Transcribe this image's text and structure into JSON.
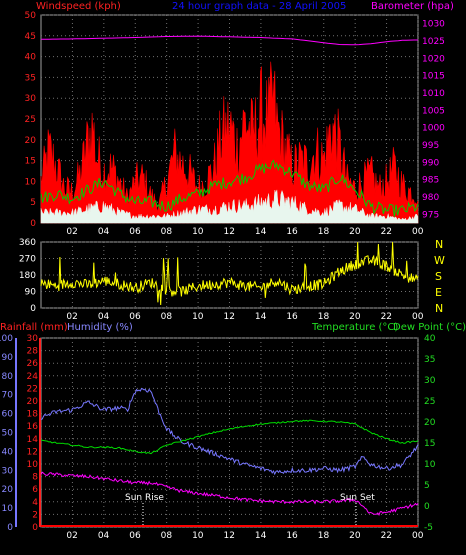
{
  "header": {
    "windspeed_label": "Windspeed (kph)",
    "title": "24 hour graph data - 28 April 2005",
    "barometer_label": "Barometer (hpa)"
  },
  "bottom_header": {
    "rainfall_label": "Rainfall (mm)",
    "humidity_label": "Humidity (%)",
    "temperature_label": "Temperature (°C)",
    "dewpoint_label": "Dew Point (°C)"
  },
  "annotations": {
    "sunrise": "Sun Rise",
    "sunset": "Sun Set"
  },
  "compass": [
    "N",
    "W",
    "S",
    "E",
    "N"
  ],
  "colors": {
    "wind_gust": "#ff0000",
    "wind_avg": "#00cc00",
    "wind_low": "#e8f6ee",
    "barometer": "#ff00ff",
    "direction": "#ffff00",
    "humidity": "#7777ff",
    "temperature": "#00dd00",
    "dewpoint": "#ff00ff",
    "rainfall": "#ff0000",
    "title": "#1111ff",
    "grid": "#707070"
  },
  "chart_data": [
    {
      "type": "area",
      "name": "wind-barometer",
      "x_ticks": [
        "02",
        "04",
        "06",
        "08",
        "10",
        "12",
        "14",
        "16",
        "18",
        "20",
        "22",
        "00"
      ],
      "y_left_ticks": [
        "0",
        "5",
        "10",
        "15",
        "20",
        "25",
        "30",
        "35",
        "40",
        "45",
        "50"
      ],
      "y_left_range": [
        0,
        50
      ],
      "y_right_ticks": [
        "975",
        "980",
        "985",
        "990",
        "995",
        "1000",
        "1005",
        "1010",
        "1015",
        "1020",
        "1025",
        "1030"
      ],
      "y_right_range": [
        972.5,
        1032.5
      ],
      "x_range": [
        0,
        24
      ],
      "series": [
        {
          "name": "Wind gust",
          "kind": "area",
          "color": "#ff0000",
          "x": [
            0,
            0.5,
            1,
            1.5,
            2,
            2.5,
            3,
            3.3,
            3.5,
            4,
            4.5,
            5,
            5.5,
            6,
            6.5,
            7,
            7.5,
            8,
            8.5,
            9,
            9.5,
            10,
            10.5,
            11,
            11.5,
            12,
            12.5,
            13,
            13.5,
            14,
            14.5,
            14.8,
            15,
            15.5,
            16,
            16.5,
            17,
            17.5,
            18,
            18.5,
            19,
            19.5,
            20,
            20.5,
            21,
            21.5,
            22,
            22.5,
            23,
            23.5,
            24
          ],
          "y": [
            12,
            21,
            16,
            10,
            9,
            14,
            24,
            28,
            20,
            15,
            16,
            12,
            7,
            12,
            13,
            8,
            5,
            12,
            20,
            17,
            14,
            10,
            12,
            16,
            25,
            28,
            22,
            30,
            25,
            32,
            30,
            36,
            28,
            22,
            16,
            18,
            17,
            21,
            18,
            28,
            22,
            12,
            10,
            12,
            14,
            10,
            12,
            16,
            11,
            9,
            8
          ]
        },
        {
          "name": "Wind average",
          "kind": "line",
          "color": "#00cc00",
          "x": [
            0,
            1,
            2,
            3,
            4,
            5,
            6,
            7,
            8,
            9,
            10,
            11,
            12,
            13,
            14,
            15,
            16,
            17,
            18,
            19,
            20,
            21,
            22,
            23,
            24
          ],
          "y": [
            6,
            7,
            6,
            8,
            10,
            7,
            5,
            5,
            4,
            6,
            7,
            9,
            10,
            11,
            13,
            14,
            12,
            9,
            8,
            11,
            8,
            4,
            3,
            3,
            4
          ]
        },
        {
          "name": "Wind low",
          "kind": "area",
          "color": "#e8f6ee",
          "x": [
            0,
            1,
            2,
            3,
            4,
            5,
            6,
            7,
            8,
            9,
            10,
            11,
            12,
            13,
            14,
            15,
            16,
            17,
            18,
            19,
            20,
            21,
            22,
            23,
            24
          ],
          "y": [
            3,
            3,
            3,
            4,
            5,
            3,
            2,
            2,
            2,
            3,
            4,
            4,
            5,
            5,
            6,
            7,
            6,
            4,
            3,
            5,
            4,
            2,
            2,
            1,
            2
          ]
        },
        {
          "name": "Barometer",
          "kind": "line",
          "axis": "right",
          "color": "#ff00ff",
          "x": [
            0,
            2,
            4,
            6,
            8,
            10,
            12,
            14,
            16,
            18,
            19,
            20,
            21,
            22,
            23,
            24
          ],
          "y": [
            1025.5,
            1025.6,
            1025.8,
            1026,
            1026.3,
            1026.4,
            1026.2,
            1026,
            1025.6,
            1024.5,
            1024,
            1023.9,
            1024.2,
            1024.8,
            1025.2,
            1025.3
          ]
        }
      ]
    },
    {
      "type": "line",
      "name": "wind-direction",
      "x_ticks": [
        "02",
        "04",
        "06",
        "08",
        "10",
        "12",
        "14",
        "16",
        "18",
        "20",
        "22",
        "00"
      ],
      "y_ticks": [
        "0",
        "90",
        "180",
        "270",
        "360"
      ],
      "y_range": [
        0,
        360
      ],
      "x_range": [
        0,
        24
      ],
      "series": [
        {
          "name": "Wind direction",
          "color": "#ffff00",
          "x": [
            0,
            1,
            2,
            3,
            4,
            5,
            6,
            7,
            8,
            9,
            10,
            11,
            12,
            13,
            14,
            15,
            16,
            17,
            18,
            19,
            20,
            21,
            22,
            23,
            24
          ],
          "y": [
            135,
            120,
            140,
            125,
            150,
            130,
            110,
            140,
            100,
            90,
            120,
            130,
            140,
            120,
            110,
            150,
            100,
            120,
            130,
            200,
            240,
            260,
            230,
            180,
            150
          ]
        }
      ]
    },
    {
      "type": "line",
      "name": "temperature-humidity",
      "x_ticks": [
        "02",
        "04",
        "06",
        "08",
        "10",
        "12",
        "14",
        "16",
        "18",
        "20",
        "22",
        "00"
      ],
      "y_left_outer_ticks": [
        "0",
        "10",
        "20",
        "30",
        "40",
        "50",
        "60",
        "70",
        "80",
        "90",
        "100"
      ],
      "y_left_inner_ticks": [
        "0",
        "2",
        "4",
        "6",
        "8",
        "10",
        "12",
        "14",
        "16",
        "18",
        "20",
        "22",
        "24",
        "26",
        "28",
        "30"
      ],
      "y_right_ticks": [
        "-5",
        "0",
        "5",
        "10",
        "15",
        "20",
        "25",
        "30",
        "35",
        "40"
      ],
      "humidity_range": [
        0,
        100
      ],
      "rainfall_range": [
        0,
        30
      ],
      "temperature_range": [
        -5,
        40
      ],
      "x_range": [
        0,
        24
      ],
      "series": [
        {
          "name": "Humidity",
          "axis": "humidity",
          "color": "#7777ff",
          "x": [
            0,
            1,
            2,
            3,
            4,
            5,
            5.5,
            6,
            6.5,
            7,
            7.5,
            8,
            8.5,
            9,
            10,
            11,
            12,
            13,
            14,
            15,
            16,
            17,
            18,
            19,
            20,
            20.5,
            21,
            22,
            23,
            24
          ],
          "y": [
            58,
            61,
            62,
            66,
            62,
            63,
            62,
            72,
            73,
            72,
            61,
            52,
            48,
            45,
            42,
            39,
            36,
            33,
            31,
            29,
            30,
            30,
            31,
            30,
            32,
            37,
            33,
            31,
            33,
            43
          ]
        },
        {
          "name": "Temperature",
          "axis": "temperature",
          "color": "#00dd00",
          "x": [
            0,
            1,
            2,
            3,
            4,
            5,
            6,
            7,
            8,
            9,
            10,
            11,
            12,
            13,
            14,
            15,
            16,
            17,
            18,
            19,
            20,
            21,
            22,
            23,
            24
          ],
          "y": [
            15.6,
            15,
            14.5,
            14,
            14,
            13.8,
            13,
            12.5,
            14.5,
            15.5,
            16.5,
            17.5,
            18.3,
            19,
            19.5,
            19.8,
            20.2,
            20.3,
            20.2,
            20,
            19.5,
            17.5,
            16,
            15,
            15.5
          ]
        },
        {
          "name": "Dew Point",
          "axis": "temperature",
          "color": "#ff00ff",
          "x": [
            0,
            1,
            2,
            3,
            4,
            5,
            6,
            7,
            8,
            9,
            10,
            11,
            12,
            13,
            14,
            15,
            16,
            17,
            18,
            19,
            20,
            20.5,
            21,
            22,
            23,
            24
          ],
          "y": [
            7.7,
            7.5,
            7.2,
            7,
            6.5,
            6,
            5.5,
            5.5,
            4.5,
            3.5,
            3,
            2.5,
            2,
            1.5,
            1.2,
            1,
            1,
            1,
            1,
            1.2,
            1.5,
            0,
            -2,
            -1.5,
            -0.5,
            0.5
          ]
        },
        {
          "name": "Rainfall",
          "axis": "rainfall",
          "color": "#ff0000",
          "x": [
            0,
            24
          ],
          "y": [
            0,
            0
          ]
        }
      ]
    }
  ]
}
